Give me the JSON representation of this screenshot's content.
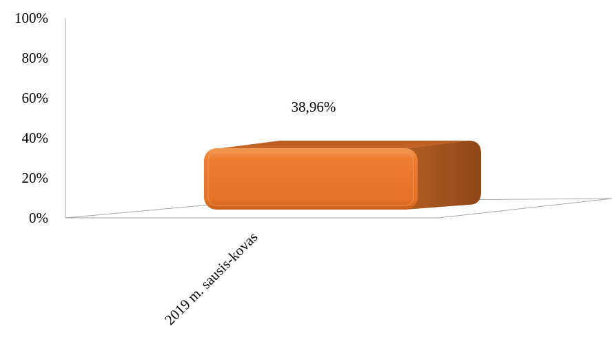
{
  "chart_data": {
    "type": "bar",
    "categories": [
      "2019 m. sausis-kovas"
    ],
    "values": [
      38.96
    ],
    "data_labels": [
      "38,96%"
    ],
    "y_ticks": [
      "0%",
      "20%",
      "40%",
      "60%",
      "80%",
      "100%"
    ],
    "ylim": [
      0,
      100
    ],
    "title": "",
    "xlabel": "",
    "ylabel": "",
    "grid": false,
    "style": "3d-rounded-box",
    "colors": {
      "bar_front": "#ED7D31",
      "bar_side": "#A65520",
      "bar_top": "#C8682A",
      "axis": "#A6A6A6"
    }
  }
}
